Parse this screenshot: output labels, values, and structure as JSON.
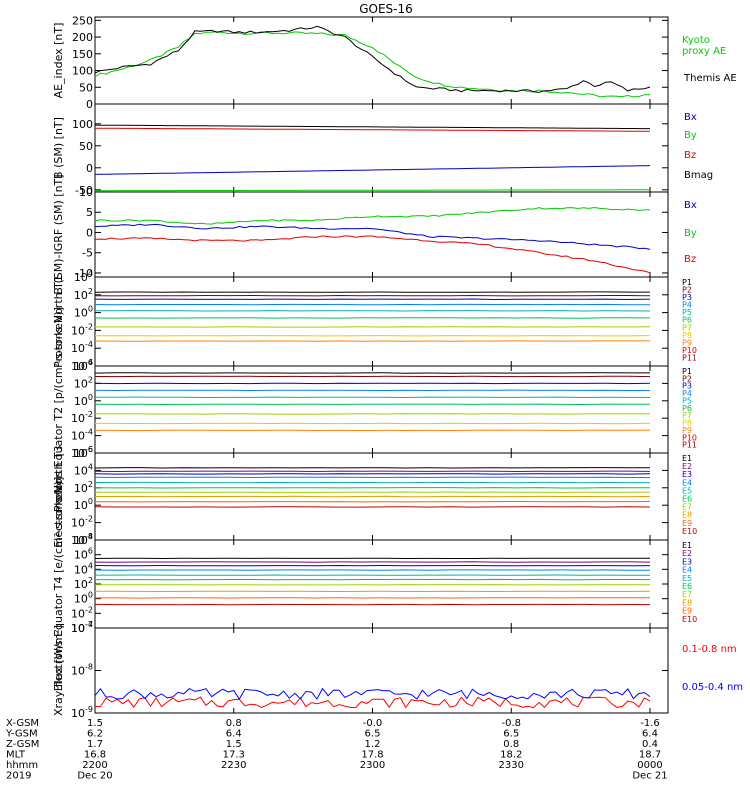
{
  "title": "GOES-16",
  "colors": {
    "black": "#000000",
    "red": "#e00000",
    "green": "#20d020",
    "blue": "#1010c0",
    "bright_red": "#ff0000",
    "bright_green": "#00e000",
    "bright_blue": "#0000ff"
  },
  "chart_data": [
    {
      "id": "ae",
      "type": "line",
      "ylabel": "AE_index [nT]",
      "ylim": [
        0,
        260
      ],
      "yticks": [
        "0",
        "50",
        "100",
        "150",
        "200",
        "250"
      ],
      "series": [
        {
          "name": "Kyoto proxy AE",
          "color": "#00cc00",
          "x": [
            0,
            5,
            10,
            15,
            18,
            22,
            26,
            30,
            35,
            40,
            45,
            50,
            55,
            58,
            62,
            66,
            70,
            75,
            80,
            85,
            90,
            95,
            100
          ],
          "y": [
            85,
            105,
            130,
            170,
            210,
            215,
            212,
            212,
            212,
            210,
            205,
            170,
            110,
            80,
            60,
            50,
            45,
            40,
            40,
            35,
            25,
            20,
            30
          ]
        },
        {
          "name": "Themis AE",
          "color": "#000000",
          "x": [
            0,
            5,
            10,
            15,
            18,
            22,
            26,
            30,
            35,
            40,
            45,
            50,
            55,
            58,
            62,
            66,
            70,
            75,
            80,
            85,
            88,
            90,
            93,
            96,
            100
          ],
          "y": [
            95,
            110,
            120,
            160,
            215,
            218,
            214,
            215,
            220,
            230,
            200,
            140,
            80,
            50,
            45,
            40,
            40,
            40,
            38,
            45,
            70,
            55,
            65,
            40,
            50
          ]
        }
      ]
    },
    {
      "id": "b",
      "type": "line",
      "ylabel": "B (SM) [nT]",
      "ylim": [
        -55,
        145
      ],
      "yticks": [
        "-50",
        "0",
        "50",
        "100"
      ],
      "series": [
        {
          "name": "Bx",
          "color": "#0000c0",
          "x": [
            0,
            100
          ],
          "y": [
            -15,
            5
          ]
        },
        {
          "name": "By",
          "color": "#00cc00",
          "x": [
            0,
            100
          ],
          "y": [
            -52,
            -50
          ]
        },
        {
          "name": "Bz",
          "color": "#e00000",
          "x": [
            0,
            100
          ],
          "y": [
            90,
            83
          ]
        },
        {
          "name": "Bmag",
          "color": "#000000",
          "x": [
            0,
            100
          ],
          "y": [
            97,
            89
          ]
        }
      ]
    },
    {
      "id": "bigrf",
      "type": "line",
      "ylabel": "B (SM)-IGRF (SM) [nT]",
      "ylim": [
        -11,
        10
      ],
      "yticks": [
        "-10",
        "-5",
        "0",
        "5",
        "10"
      ],
      "series": [
        {
          "name": "Bx",
          "color": "#0000c0",
          "x": [
            0,
            10,
            20,
            30,
            40,
            50,
            60,
            70,
            80,
            90,
            100
          ],
          "y": [
            1.5,
            2,
            1,
            1.5,
            1,
            1,
            -1,
            -1.5,
            -2,
            -3,
            -4
          ]
        },
        {
          "name": "By",
          "color": "#00cc00",
          "x": [
            0,
            10,
            20,
            30,
            40,
            50,
            60,
            70,
            80,
            90,
            100
          ],
          "y": [
            3,
            3,
            2,
            3,
            3,
            4,
            4,
            5,
            6,
            6,
            5.5
          ]
        },
        {
          "name": "Bz",
          "color": "#e00000",
          "x": [
            0,
            10,
            20,
            30,
            40,
            50,
            60,
            70,
            80,
            90,
            100
          ],
          "y": [
            -1.5,
            -1.5,
            -2,
            -2,
            -1,
            -1,
            -2,
            -3,
            -5,
            -7,
            -10
          ]
        }
      ]
    },
    {
      "id": "pt1",
      "type": "line",
      "ylabel": "Protons North T1",
      "ylog": [
        -6,
        4
      ],
      "yticks": [
        "10^4",
        "10^2",
        "10^0",
        "10^-2",
        "10^-4",
        "10^-6"
      ],
      "series": [
        {
          "name": "P1",
          "color": "#000000",
          "y": 2.3
        },
        {
          "name": "P2",
          "color": "#800000",
          "y": 1.9
        },
        {
          "name": "P3",
          "color": "#0000c0",
          "y": 1.5
        },
        {
          "name": "P4",
          "color": "#0080ff",
          "y": 0.9
        },
        {
          "name": "P5",
          "color": "#00b0b0",
          "y": 0.2
        },
        {
          "name": "P6",
          "color": "#00c060",
          "y": -0.6
        },
        {
          "name": "P7",
          "color": "#a0d000",
          "y": -1.6
        },
        {
          "name": "P8",
          "color": "#e0d000",
          "y": -2.6
        },
        {
          "name": "P9",
          "color": "#ff8000",
          "y": -3.2
        },
        {
          "name": "P10",
          "color": "#e00000",
          "y": null
        },
        {
          "name": "P11",
          "color": "#a00000",
          "y": null
        }
      ]
    },
    {
      "id": "pt2",
      "type": "line",
      "ylabel": "Protons Equator T2 [p/(cm²-s-sr-keV)]",
      "ylog": [
        -6,
        4
      ],
      "yticks": [
        "10^4",
        "10^2",
        "10^0",
        "10^-2",
        "10^-4",
        "10^-6"
      ],
      "series": [
        {
          "name": "P1",
          "color": "#000000",
          "y": 3.2
        },
        {
          "name": "P2",
          "color": "#800000",
          "y": 2.8
        },
        {
          "name": "P3",
          "color": "#0000c0",
          "y": 2.0
        },
        {
          "name": "P4",
          "color": "#0080ff",
          "y": 1.2
        },
        {
          "name": "P5",
          "color": "#00b0b0",
          "y": 0.4
        },
        {
          "name": "P6",
          "color": "#00c060",
          "y": -0.4
        },
        {
          "name": "P7",
          "color": "#a0d000",
          "y": -1.5
        },
        {
          "name": "P8",
          "color": "#e0d000",
          "y": -2.6
        },
        {
          "name": "P9",
          "color": "#ff8000",
          "y": -3.4
        },
        {
          "name": "P10",
          "color": "#e00000",
          "y": null
        },
        {
          "name": "P11",
          "color": "#a00000",
          "y": null
        }
      ]
    },
    {
      "id": "et3",
      "type": "line",
      "ylabel": "Electrons North T3",
      "ylog": [
        -4,
        6
      ],
      "yticks": [
        "10^6",
        "10^4",
        "10^2",
        "10^0",
        "10^-2",
        "10^-4"
      ],
      "series": [
        {
          "name": "E1",
          "color": "#000000",
          "y": 4.3
        },
        {
          "name": "E2",
          "color": "#800080",
          "y": 3.9
        },
        {
          "name": "E3",
          "color": "#0000c0",
          "y": 3.6
        },
        {
          "name": "E4",
          "color": "#0080ff",
          "y": 3.2
        },
        {
          "name": "E5",
          "color": "#00b0b0",
          "y": 2.6
        },
        {
          "name": "E6",
          "color": "#00c060",
          "y": 2.0
        },
        {
          "name": "E7",
          "color": "#a0d000",
          "y": 1.5
        },
        {
          "name": "E8",
          "color": "#e0a000",
          "y": 1.0
        },
        {
          "name": "E9",
          "color": "#ff6000",
          "y": 0.4
        },
        {
          "name": "E10",
          "color": "#c00000",
          "y": -0.2
        }
      ]
    },
    {
      "id": "et4",
      "type": "line",
      "ylabel": "Electrons Equator T4 [e/(cm²-s-sr-keV)]",
      "ylog": [
        -4,
        8
      ],
      "yticks": [
        "10^8",
        "10^6",
        "10^4",
        "10^2",
        "10^0",
        "10^-2",
        "10^-4"
      ],
      "series": [
        {
          "name": "E1",
          "color": "#000000",
          "y": 5.5
        },
        {
          "name": "E2",
          "color": "#800080",
          "y": 5.0
        },
        {
          "name": "E3",
          "color": "#0000c0",
          "y": 4.5
        },
        {
          "name": "E4",
          "color": "#0080ff",
          "y": 3.9
        },
        {
          "name": "E5",
          "color": "#00b0b0",
          "y": 3.2
        },
        {
          "name": "E6",
          "color": "#00c060",
          "y": 2.6
        },
        {
          "name": "E7",
          "color": "#a0d000",
          "y": 1.9
        },
        {
          "name": "E8",
          "color": "#e0a000",
          "y": 1.0
        },
        {
          "name": "E9",
          "color": "#ff6000",
          "y": 0.1
        },
        {
          "name": "E10",
          "color": "#c00000",
          "y": -0.8
        }
      ]
    },
    {
      "id": "xray",
      "type": "line",
      "ylabel": "Xray flux [W/m²]",
      "ylog": [
        -9,
        -7
      ],
      "yticks": [
        "10^-7",
        "10^-8",
        "10^-9"
      ],
      "series": [
        {
          "name": "0.1-0.8 nm",
          "color": "#ff0000",
          "y": -8.75
        },
        {
          "name": "0.05-0.4 nm",
          "color": "#0000ff",
          "y": -8.55
        }
      ]
    }
  ],
  "legends": {
    "ae": [
      {
        "text": "Kyoto",
        "color": "#00cc00"
      },
      {
        "text": "proxy AE",
        "color": "#00cc00"
      },
      {
        "text": "Themis AE",
        "color": "#000000"
      }
    ],
    "b": [
      {
        "text": "Bx",
        "color": "#0000c0"
      },
      {
        "text": "By",
        "color": "#00cc00"
      },
      {
        "text": "Bz",
        "color": "#e00000"
      },
      {
        "text": "Bmag",
        "color": "#000000"
      }
    ],
    "bigrf": [
      {
        "text": "Bx",
        "color": "#0000c0"
      },
      {
        "text": "By",
        "color": "#00cc00"
      },
      {
        "text": "Bz",
        "color": "#e00000"
      }
    ],
    "xray": [
      {
        "text": "0.1-0.8 nm",
        "color": "#ff0000"
      },
      {
        "text": "0.05-0.4 nm",
        "color": "#0000ff"
      }
    ]
  },
  "x_axis": {
    "row_labels": [
      "X-GSM",
      "Y-GSM",
      "Z-GSM",
      "MLT",
      "hhmm",
      "2019"
    ],
    "columns": [
      [
        "1.5",
        "6.2",
        "1.7",
        "16.8",
        "2200",
        "Dec 20"
      ],
      [
        "0.8",
        "6.4",
        "1.5",
        "17.3",
        "2230",
        ""
      ],
      [
        "-0.0",
        "6.5",
        "1.2",
        "17.8",
        "2300",
        ""
      ],
      [
        "-0.8",
        "6.5",
        "0.8",
        "18.2",
        "2330",
        ""
      ],
      [
        "-1.6",
        "6.4",
        "0.4",
        "18.7",
        "0000",
        "Dec 21"
      ]
    ]
  }
}
